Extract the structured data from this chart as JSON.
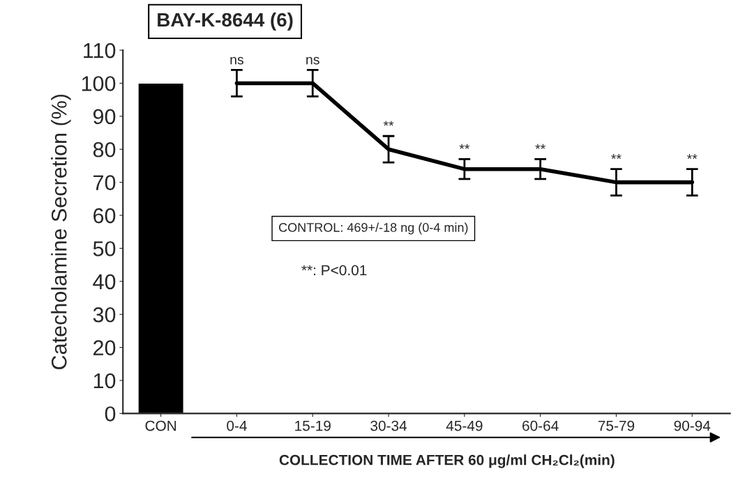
{
  "chart_data": {
    "type": "line",
    "title": "BAY-K-8644 (6)",
    "xlabel": "COLLECTION TIME AFTER 60 μg/ml CH₂Cl₂(min)",
    "ylabel": "Catecholamine Secretion (%)",
    "categories": [
      "CON",
      "0-4",
      "15-19",
      "30-34",
      "45-49",
      "60-64",
      "75-79",
      "90-94"
    ],
    "series": [
      {
        "type": "bar",
        "color": "#000000",
        "values": [
          100,
          null,
          null,
          null,
          null,
          null,
          null,
          null
        ]
      },
      {
        "color": "#000000",
        "values": [
          null,
          100,
          100,
          80,
          74,
          74,
          70,
          70
        ],
        "errors": [
          null,
          4,
          4,
          4,
          3,
          3,
          4,
          4
        ]
      }
    ],
    "ylim": [
      0,
      110
    ],
    "yticks": [
      0,
      10,
      20,
      30,
      40,
      50,
      60,
      70,
      80,
      90,
      100,
      110
    ],
    "annotations": [
      {
        "text": "ns",
        "x": "0-4",
        "y": 104
      },
      {
        "text": "ns",
        "x": "15-19",
        "y": 104
      },
      {
        "text": "**",
        "x": "30-34",
        "y": 84
      },
      {
        "text": "**",
        "x": "45-49",
        "y": 77
      },
      {
        "text": "**",
        "x": "60-64",
        "y": 77
      },
      {
        "text": "**",
        "x": "75-79",
        "y": 74
      },
      {
        "text": "**",
        "x": "90-94",
        "y": 74
      },
      "CONTROL: 469+/-18 ng (0-4 min)",
      "**: P<0.01"
    ],
    "grid": false,
    "marker": "none",
    "line_style": "solid"
  }
}
